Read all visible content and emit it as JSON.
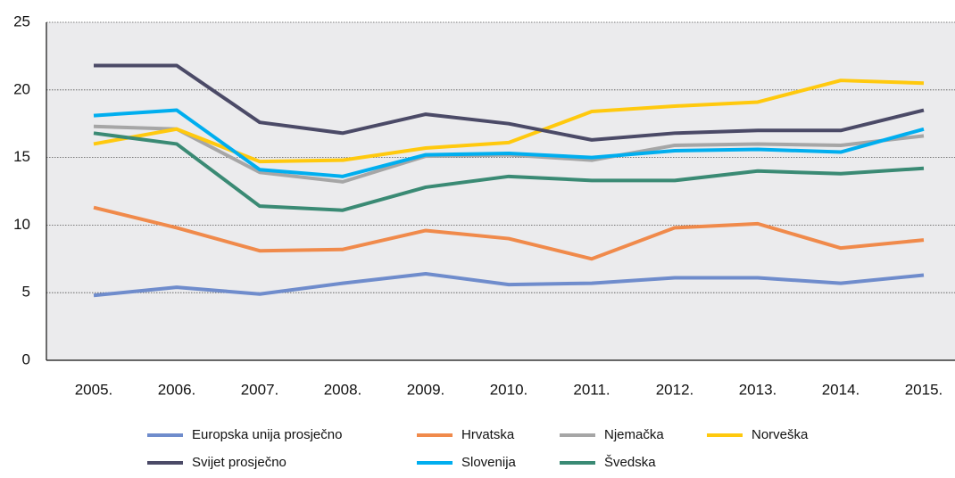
{
  "chart_data": {
    "type": "line",
    "categories": [
      "2005.",
      "2006.",
      "2007.",
      "2008.",
      "2009.",
      "2010.",
      "2011.",
      "2012.",
      "2013.",
      "2014.",
      "2015."
    ],
    "series": [
      {
        "name": "Europska unija prosječno",
        "color": "#6f8ccc",
        "values": [
          4.8,
          5.4,
          4.9,
          5.7,
          6.4,
          5.6,
          5.7,
          6.1,
          6.1,
          5.7,
          6.3
        ]
      },
      {
        "name": "Hrvatska",
        "color": "#f08a4b",
        "values": [
          11.3,
          9.8,
          8.1,
          8.2,
          9.6,
          9.0,
          7.5,
          9.8,
          10.1,
          8.3,
          8.9
        ]
      },
      {
        "name": "Njemačka",
        "color": "#a6a6a6",
        "values": [
          17.3,
          17.1,
          13.9,
          13.2,
          15.1,
          15.2,
          14.8,
          15.9,
          16.0,
          15.9,
          16.6
        ]
      },
      {
        "name": "Norveška",
        "color": "#ffc90e",
        "values": [
          16.0,
          17.1,
          14.7,
          14.8,
          15.7,
          16.1,
          18.4,
          18.8,
          19.1,
          20.7,
          20.5
        ]
      },
      {
        "name": "Svijet prosječno",
        "color": "#4b4a67",
        "values": [
          21.8,
          21.8,
          17.6,
          16.8,
          18.2,
          17.5,
          16.3,
          16.8,
          17.0,
          17.0,
          18.5
        ]
      },
      {
        "name": "Slovenija",
        "color": "#00aeef",
        "values": [
          18.1,
          18.5,
          14.1,
          13.6,
          15.2,
          15.3,
          15.0,
          15.5,
          15.6,
          15.4,
          17.1
        ]
      },
      {
        "name": "Švedska",
        "color": "#3a8a74",
        "values": [
          16.8,
          16.0,
          11.4,
          11.1,
          12.8,
          13.6,
          13.3,
          13.3,
          14.0,
          13.8,
          14.2
        ]
      }
    ],
    "ylim": [
      0,
      25
    ],
    "yticks": [
      0,
      5,
      10,
      15,
      20,
      25
    ],
    "grid": true
  }
}
